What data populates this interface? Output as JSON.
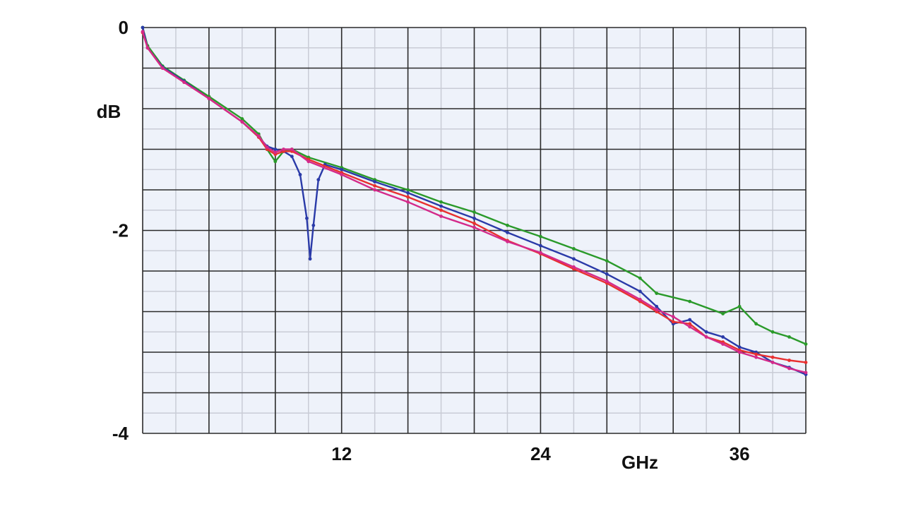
{
  "chart_data": {
    "type": "line",
    "xlabel": "GHz",
    "ylabel": "dB",
    "xlim": [
      0,
      40
    ],
    "ylim": [
      -4,
      0
    ],
    "x_ticks": [
      {
        "value": 12,
        "label": "12"
      },
      {
        "value": 24,
        "label": "24"
      },
      {
        "value": 36,
        "label": "36"
      }
    ],
    "y_ticks": [
      {
        "value": 0,
        "label": "0"
      },
      {
        "value": -2,
        "label": "-2"
      },
      {
        "value": -4,
        "label": "-4"
      }
    ],
    "grid": true,
    "background": "#eef2fa",
    "series": [
      {
        "color": "#2a9a2a",
        "points": [
          [
            0,
            0
          ],
          [
            0.3,
            -0.18
          ],
          [
            1.2,
            -0.38
          ],
          [
            2.5,
            -0.52
          ],
          [
            4,
            -0.68
          ],
          [
            6,
            -0.9
          ],
          [
            7,
            -1.05
          ],
          [
            7.5,
            -1.2
          ],
          [
            8,
            -1.32
          ],
          [
            8.5,
            -1.22
          ],
          [
            9,
            -1.2
          ],
          [
            10,
            -1.28
          ],
          [
            12,
            -1.38
          ],
          [
            14,
            -1.5
          ],
          [
            16,
            -1.6
          ],
          [
            18,
            -1.72
          ],
          [
            20,
            -1.82
          ],
          [
            22,
            -1.95
          ],
          [
            24,
            -2.06
          ],
          [
            26,
            -2.18
          ],
          [
            28,
            -2.3
          ],
          [
            30,
            -2.47
          ],
          [
            31,
            -2.62
          ],
          [
            33,
            -2.7
          ],
          [
            35,
            -2.82
          ],
          [
            36,
            -2.75
          ],
          [
            37,
            -2.92
          ],
          [
            38,
            -3.0
          ],
          [
            39,
            -3.05
          ],
          [
            40,
            -3.12
          ]
        ]
      },
      {
        "color": "#2a3aa8",
        "points": [
          [
            0,
            0
          ],
          [
            0.3,
            -0.2
          ],
          [
            1.2,
            -0.39
          ],
          [
            2.5,
            -0.53
          ],
          [
            4,
            -0.7
          ],
          [
            6,
            -0.93
          ],
          [
            7,
            -1.08
          ],
          [
            7.5,
            -1.17
          ],
          [
            8,
            -1.2
          ],
          [
            8.5,
            -1.22
          ],
          [
            9,
            -1.27
          ],
          [
            9.5,
            -1.45
          ],
          [
            9.9,
            -1.88
          ],
          [
            10.1,
            -2.28
          ],
          [
            10.3,
            -1.95
          ],
          [
            10.6,
            -1.5
          ],
          [
            11,
            -1.35
          ],
          [
            12,
            -1.4
          ],
          [
            14,
            -1.52
          ],
          [
            16,
            -1.63
          ],
          [
            18,
            -1.76
          ],
          [
            20,
            -1.88
          ],
          [
            22,
            -2.02
          ],
          [
            24,
            -2.15
          ],
          [
            26,
            -2.28
          ],
          [
            28,
            -2.43
          ],
          [
            30,
            -2.6
          ],
          [
            31,
            -2.75
          ],
          [
            32,
            -2.92
          ],
          [
            33,
            -2.88
          ],
          [
            34,
            -3.0
          ],
          [
            35,
            -3.05
          ],
          [
            36,
            -3.15
          ],
          [
            37,
            -3.2
          ],
          [
            38,
            -3.3
          ],
          [
            39,
            -3.35
          ],
          [
            40,
            -3.42
          ]
        ]
      },
      {
        "color": "#e83030",
        "points": [
          [
            0,
            -0.05
          ],
          [
            0.3,
            -0.2
          ],
          [
            1.2,
            -0.4
          ],
          [
            2.5,
            -0.54
          ],
          [
            4,
            -0.7
          ],
          [
            6,
            -0.93
          ],
          [
            7,
            -1.08
          ],
          [
            7.5,
            -1.2
          ],
          [
            8,
            -1.25
          ],
          [
            8.5,
            -1.22
          ],
          [
            9,
            -1.22
          ],
          [
            10,
            -1.3
          ],
          [
            12,
            -1.43
          ],
          [
            14,
            -1.56
          ],
          [
            16,
            -1.67
          ],
          [
            18,
            -1.8
          ],
          [
            20,
            -1.93
          ],
          [
            22,
            -2.1
          ],
          [
            24,
            -2.23
          ],
          [
            26,
            -2.38
          ],
          [
            28,
            -2.52
          ],
          [
            30,
            -2.7
          ],
          [
            31,
            -2.8
          ],
          [
            32,
            -2.9
          ],
          [
            33,
            -2.92
          ],
          [
            34,
            -3.05
          ],
          [
            35,
            -3.1
          ],
          [
            36,
            -3.18
          ],
          [
            37,
            -3.22
          ],
          [
            38,
            -3.25
          ],
          [
            39,
            -3.28
          ],
          [
            40,
            -3.3
          ]
        ]
      },
      {
        "color": "#d42a8a",
        "points": [
          [
            0,
            -0.04
          ],
          [
            0.3,
            -0.2
          ],
          [
            1.2,
            -0.4
          ],
          [
            2.5,
            -0.54
          ],
          [
            4,
            -0.7
          ],
          [
            6,
            -0.93
          ],
          [
            7,
            -1.07
          ],
          [
            7.5,
            -1.18
          ],
          [
            8,
            -1.23
          ],
          [
            8.5,
            -1.2
          ],
          [
            9,
            -1.2
          ],
          [
            10,
            -1.32
          ],
          [
            12,
            -1.45
          ],
          [
            14,
            -1.6
          ],
          [
            16,
            -1.72
          ],
          [
            18,
            -1.86
          ],
          [
            20,
            -1.97
          ],
          [
            22,
            -2.11
          ],
          [
            24,
            -2.22
          ],
          [
            26,
            -2.36
          ],
          [
            28,
            -2.5
          ],
          [
            30,
            -2.68
          ],
          [
            31,
            -2.78
          ],
          [
            32,
            -2.85
          ],
          [
            33,
            -2.95
          ],
          [
            34,
            -3.05
          ],
          [
            35,
            -3.12
          ],
          [
            36,
            -3.2
          ],
          [
            37,
            -3.25
          ],
          [
            38,
            -3.3
          ],
          [
            39,
            -3.36
          ],
          [
            40,
            -3.4
          ]
        ]
      }
    ]
  }
}
